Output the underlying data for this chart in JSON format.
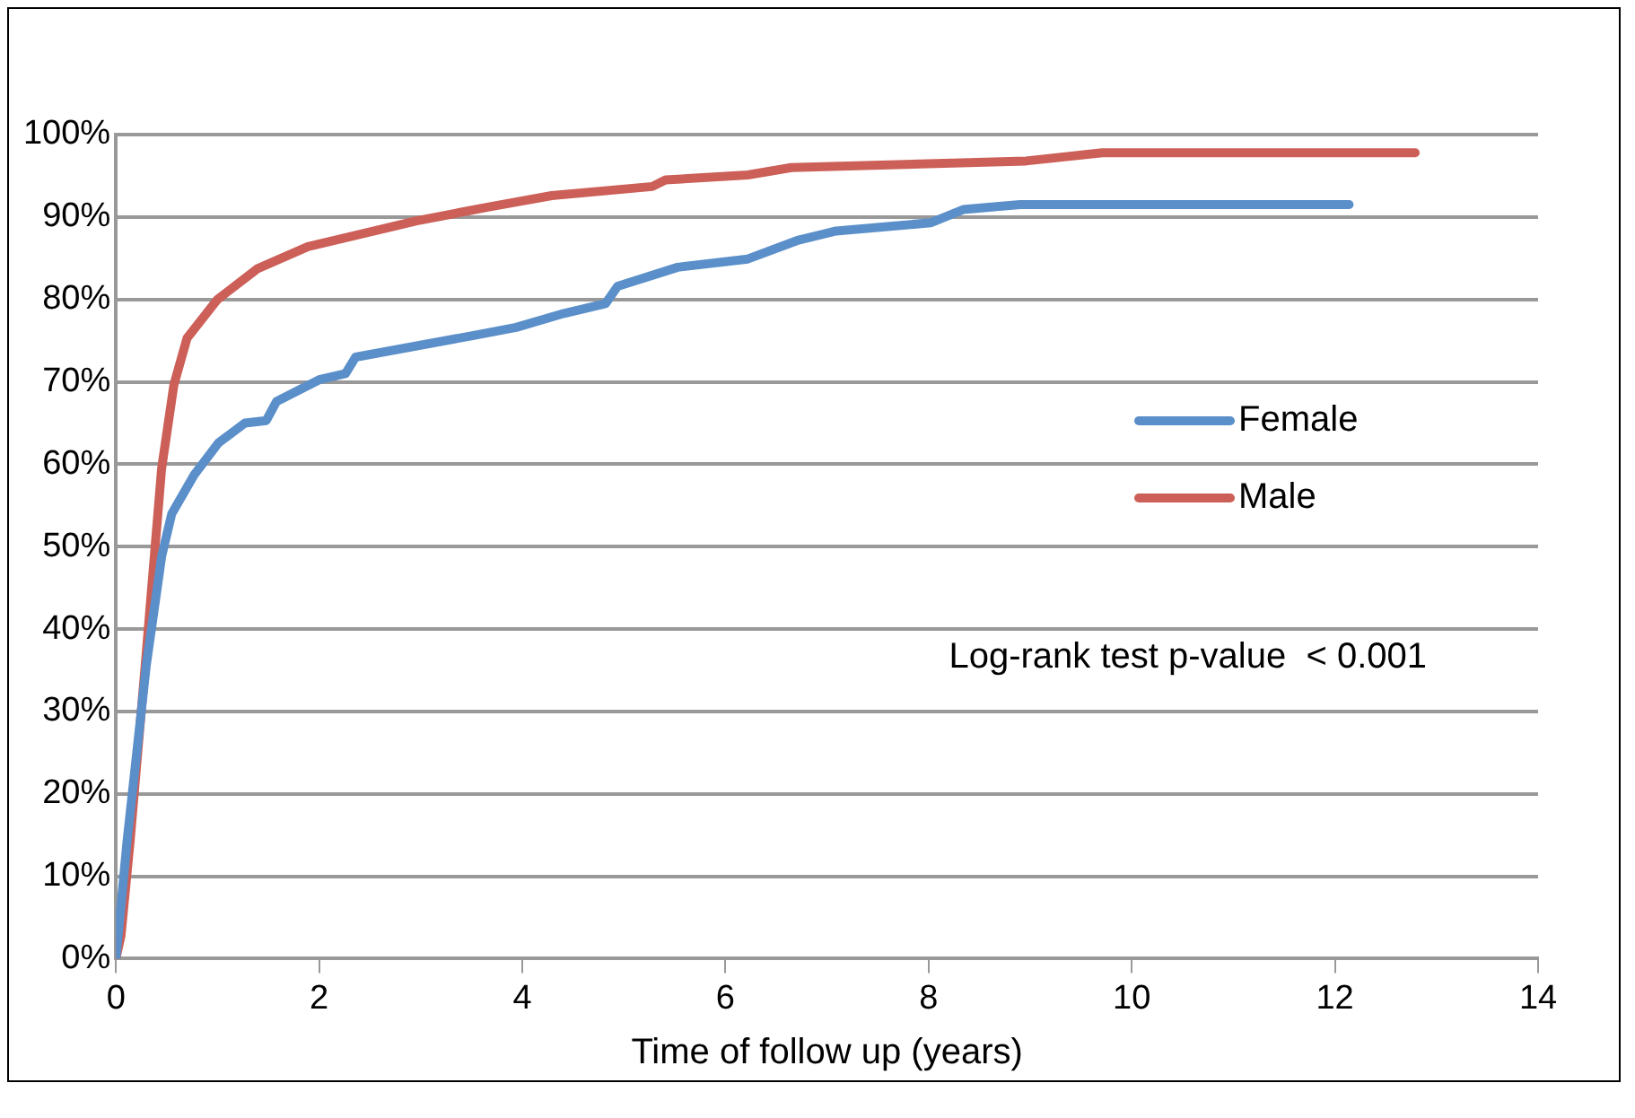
{
  "chart_data": {
    "type": "line",
    "xlabel": "Time of follow up (years)",
    "annotations": [
      "Log-rank test p-value  < 0.001"
    ],
    "xlim": [
      0,
      14
    ],
    "xticks": [
      0,
      2,
      4,
      6,
      8,
      10,
      12,
      14
    ],
    "ylim": [
      0,
      100
    ],
    "yticks": [
      {
        "value": 0,
        "label": "0%"
      },
      {
        "value": 10,
        "label": "10%"
      },
      {
        "value": 20,
        "label": "20%"
      },
      {
        "value": 30,
        "label": "30%"
      },
      {
        "value": 40,
        "label": "40%"
      },
      {
        "value": 50,
        "label": "50%"
      },
      {
        "value": 60,
        "label": "60%"
      },
      {
        "value": 70,
        "label": "70%"
      },
      {
        "value": 80,
        "label": "80%"
      },
      {
        "value": 90,
        "label": "90%"
      },
      {
        "value": 100,
        "label": "100%"
      }
    ],
    "grid": "y",
    "legend": "right",
    "marker": "none",
    "line_style": "solid",
    "series": [
      {
        "name": "Female",
        "color": "#5b8fc9",
        "x": [
          0,
          0.11,
          0.3,
          0.45,
          0.55,
          0.77,
          1.01,
          1.27,
          1.48,
          1.58,
          2.01,
          2.26,
          2.36,
          3.51,
          3.94,
          4.41,
          4.82,
          4.94,
          5.53,
          6.22,
          6.72,
          7.09,
          8.02,
          8.34,
          8.9,
          12.14
        ],
        "values": [
          0,
          14.3,
          35.7,
          48.8,
          54,
          58.7,
          62.6,
          65,
          65.3,
          67.6,
          70.3,
          71,
          73,
          75.6,
          76.6,
          78.3,
          79.5,
          81.6,
          83.9,
          84.9,
          87.2,
          88.3,
          89.3,
          90.9,
          91.5,
          91.5
        ]
      },
      {
        "name": "Male",
        "color": "#cc5f57",
        "x": [
          0,
          0.05,
          0.14,
          0.3,
          0.45,
          0.57,
          0.7,
          1,
          1.39,
          1.89,
          2.95,
          3.66,
          4.29,
          5.28,
          5.41,
          6.22,
          6.65,
          8.96,
          9.71,
          12.79
        ],
        "values": [
          0,
          2.8,
          14.3,
          37.3,
          59.5,
          69.6,
          75.3,
          80,
          83.7,
          86.4,
          89.5,
          91.2,
          92.6,
          93.7,
          94.5,
          95.1,
          96,
          96.8,
          97.8,
          97.8
        ]
      }
    ]
  }
}
